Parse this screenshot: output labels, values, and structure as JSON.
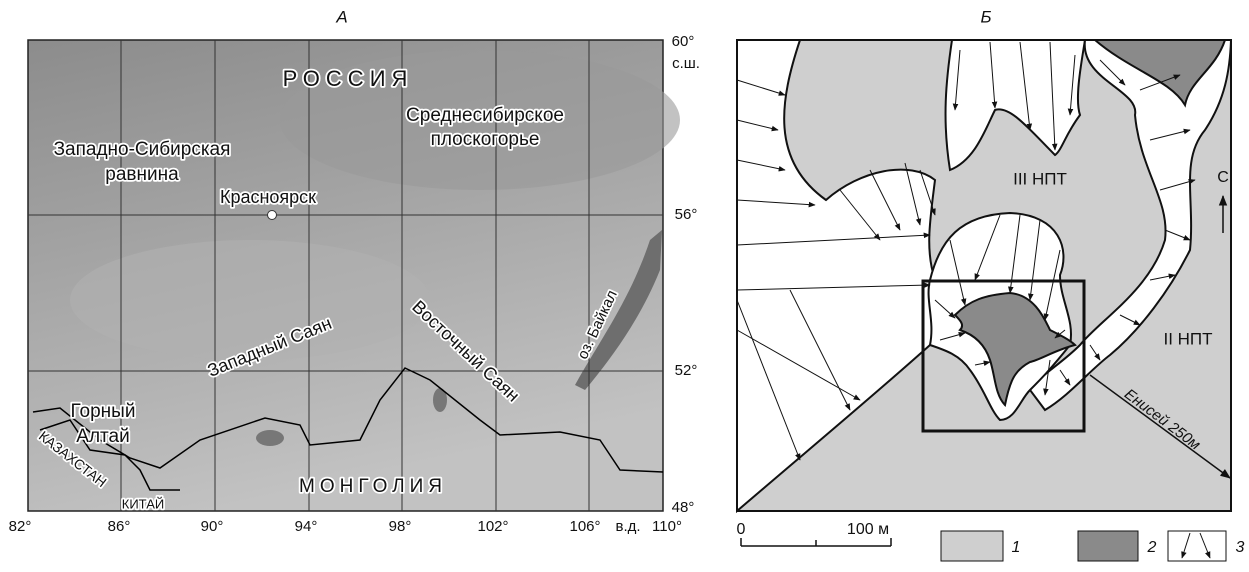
{
  "panel_a": {
    "title": "А",
    "russia": "РОССИЯ",
    "central_siberian_plateau": [
      "Среднесибирское",
      "плоскогорье"
    ],
    "west_siberian_plain": [
      "Западно-Сибирская",
      "равнина"
    ],
    "krasnoyarsk": "Красноярск",
    "western_sayan": "Западный Саян",
    "eastern_sayan": "Восточный Саян",
    "baikal": "оз. Байкал",
    "gorny_altai": [
      "Горный",
      "Алтай"
    ],
    "kazakhstan": "КАЗАХСТАН",
    "china": "КИТАЙ",
    "mongolia": "МОНГОЛИЯ",
    "lat_labels": [
      "60°",
      "с.ш.",
      "56°",
      "52°",
      "48°"
    ],
    "lon_labels": [
      "82°",
      "86°",
      "90°",
      "94°",
      "98°",
      "102°",
      "106°",
      "в.д.",
      "110°"
    ]
  },
  "panel_b": {
    "title": "Б",
    "terrace_3": "III НПТ",
    "terrace_2": "II НПТ",
    "north": "С",
    "river": "Енисей 250м",
    "scale": [
      "0",
      "100 м"
    ],
    "legend": [
      "1",
      "2",
      "3"
    ]
  }
}
